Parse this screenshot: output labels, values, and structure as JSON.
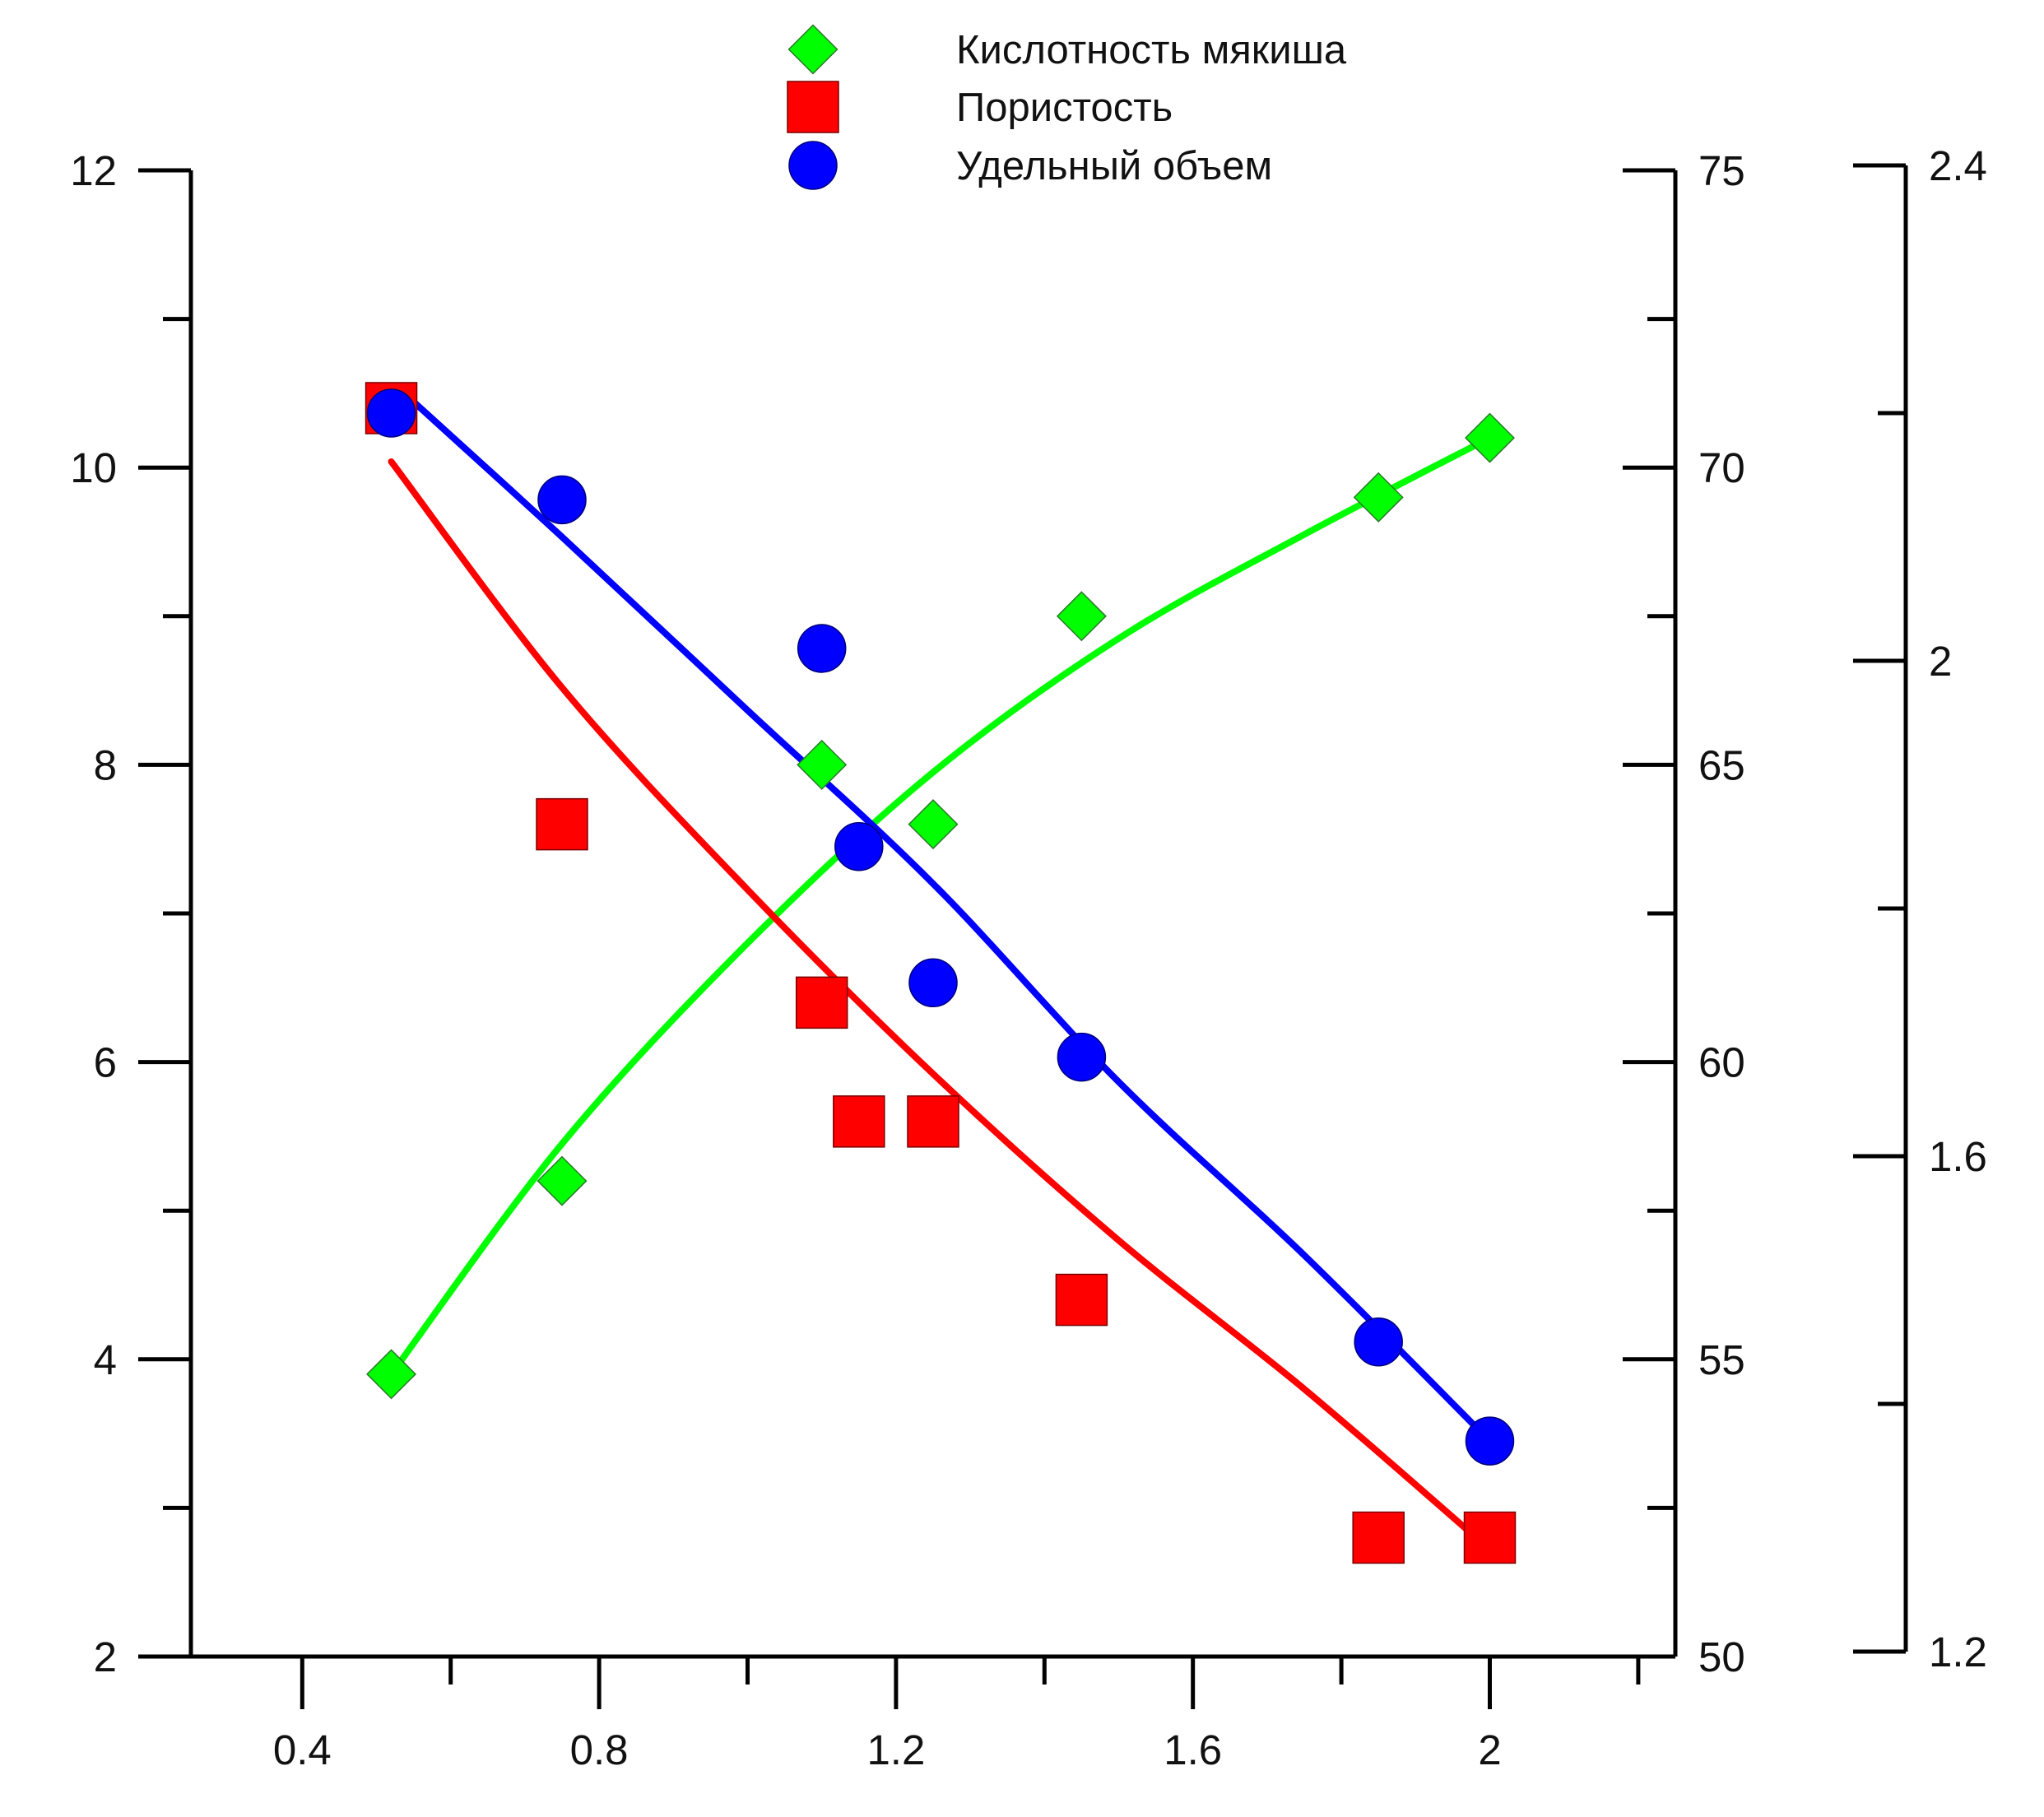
{
  "chart_data": {
    "type": "scatter",
    "title": "",
    "xlabel": "",
    "x_axis": {
      "range": [
        0.25,
        2.25
      ],
      "major_ticks": [
        0.4,
        0.8,
        1.2,
        1.6,
        2.0
      ],
      "minor_ticks": [
        0.6,
        1.0,
        1.4,
        1.8,
        2.2
      ],
      "tick_labels": [
        "0.4",
        "0.8",
        "1.2",
        "1.6",
        "2"
      ]
    },
    "y_axes": [
      {
        "id": "left",
        "label": "",
        "range": [
          2,
          12
        ],
        "major_ticks": [
          2,
          4,
          6,
          8,
          10,
          12
        ],
        "minor_ticks": [
          3,
          5,
          7,
          9,
          11
        ],
        "tick_labels": [
          "2",
          "4",
          "6",
          "8",
          "10",
          "12"
        ]
      },
      {
        "id": "right1",
        "label": "",
        "range": [
          50,
          75
        ],
        "major_ticks": [
          50,
          55,
          60,
          65,
          70,
          75
        ],
        "minor_ticks": [
          52.5,
          57.5,
          62.5,
          67.5,
          72.5
        ],
        "tick_labels": [
          "50",
          "55",
          "60",
          "65",
          "70",
          "75"
        ]
      },
      {
        "id": "right2",
        "label": "",
        "range": [
          1.2,
          2.4
        ],
        "major_ticks": [
          1.2,
          1.6,
          2.0,
          2.4
        ],
        "minor_ticks": [
          1.4,
          1.8,
          2.2
        ],
        "tick_labels": [
          "1.2",
          "1.6",
          "2",
          "2.4"
        ]
      }
    ],
    "legend_position": "top-center",
    "grid": false,
    "series": [
      {
        "name": "Кислотность мякиша",
        "axis": "left",
        "marker": "diamond",
        "color": "#00ff00",
        "x": [
          0.52,
          0.75,
          1.1,
          1.25,
          1.45,
          1.85,
          2.0
        ],
        "y": [
          3.9,
          5.2,
          8.0,
          7.6,
          9.0,
          9.8,
          10.2
        ],
        "fit": [
          [
            0.52,
            3.9
          ],
          [
            0.75,
            5.45
          ],
          [
            1.0,
            6.8
          ],
          [
            1.25,
            7.95
          ],
          [
            1.5,
            8.85
          ],
          [
            1.75,
            9.55
          ],
          [
            2.0,
            10.2
          ]
        ]
      },
      {
        "name": "Пористость",
        "axis": "right1",
        "marker": "square",
        "color": "#ff0000",
        "x": [
          0.52,
          0.75,
          1.1,
          1.15,
          1.25,
          1.45,
          1.85,
          2.0
        ],
        "y": [
          71.0,
          64.0,
          61.0,
          59.0,
          59.0,
          56.0,
          52.0,
          52.0
        ],
        "fit": [
          [
            0.52,
            70.1
          ],
          [
            0.75,
            66.3
          ],
          [
            1.0,
            62.9
          ],
          [
            1.25,
            59.8
          ],
          [
            1.5,
            57.0
          ],
          [
            1.75,
            54.5
          ],
          [
            2.0,
            51.8
          ]
        ]
      },
      {
        "name": "Удельный объем",
        "axis": "right2",
        "marker": "circle",
        "color": "#0000ff",
        "x": [
          0.52,
          0.75,
          1.1,
          1.15,
          1.25,
          1.45,
          1.85,
          2.0
        ],
        "y": [
          2.2,
          2.13,
          2.01,
          1.85,
          1.74,
          1.68,
          1.45,
          1.37
        ],
        "fit": [
          [
            0.53,
            2.22
          ],
          [
            0.75,
            2.1
          ],
          [
            1.0,
            1.96
          ],
          [
            1.25,
            1.82
          ],
          [
            1.5,
            1.66
          ],
          [
            1.75,
            1.52
          ],
          [
            2.0,
            1.37
          ]
        ]
      }
    ]
  }
}
